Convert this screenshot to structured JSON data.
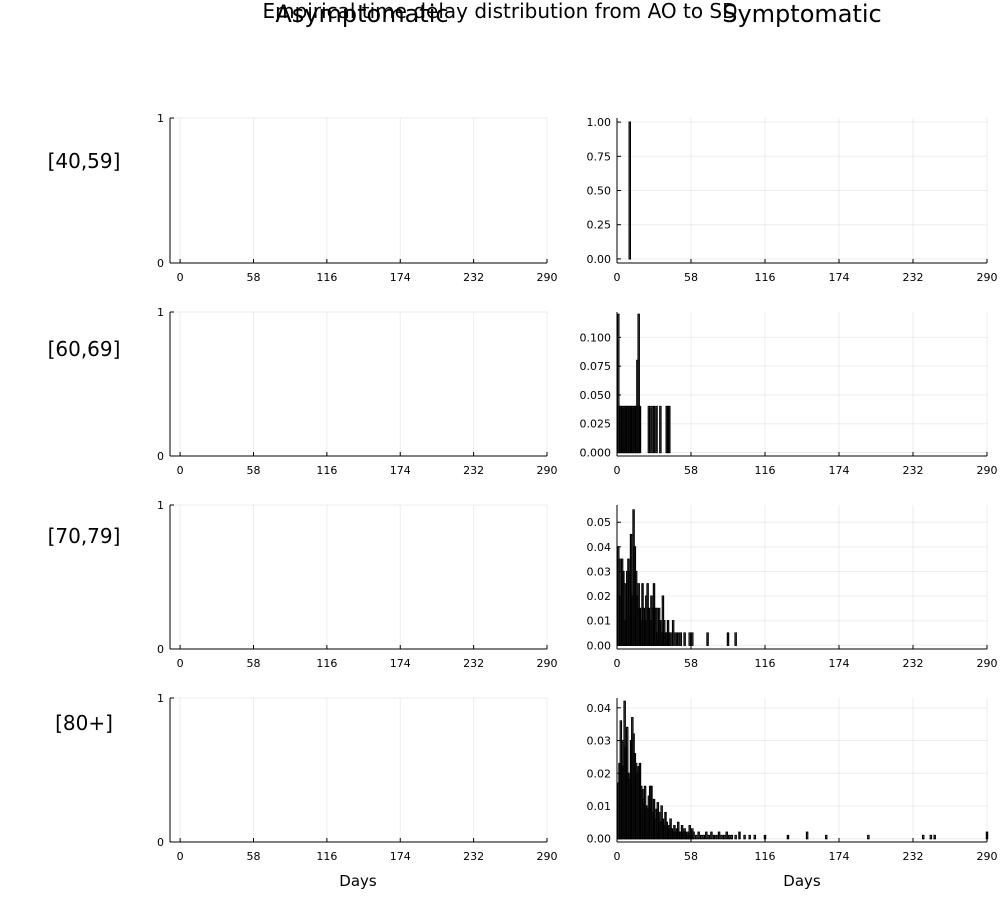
{
  "title": "Empirical time delay distribution from AO to SD",
  "columns": [
    "Asymptomatic",
    "Symptomatic"
  ],
  "rows": [
    "[40,59]",
    "[60,69]",
    "[70,79]",
    "[80+]"
  ],
  "xlabel": "Days",
  "colors": {
    "bar": "#000000",
    "axis": "#000000"
  },
  "chart_data": [
    {
      "type": "bar",
      "panel": "Asymptomatic [40,59]",
      "xlim": [
        -8,
        290
      ],
      "ylim": [
        0,
        1
      ],
      "xticks": [
        0,
        58,
        116,
        174,
        232,
        290
      ],
      "yticks": [
        0,
        1
      ],
      "ytick_labels": [
        "0",
        "1"
      ],
      "grid": true,
      "x": [],
      "values": []
    },
    {
      "type": "bar",
      "panel": "Symptomatic [40,59]",
      "xlim": [
        0,
        290
      ],
      "ylim": [
        -0.03,
        1.03
      ],
      "xticks": [
        0,
        58,
        116,
        174,
        232,
        290
      ],
      "yticks": [
        0,
        0.25,
        0.5,
        0.75,
        1.0
      ],
      "ytick_labels": [
        "0.00",
        "0.25",
        "0.50",
        "0.75",
        "1.00"
      ],
      "grid": true,
      "x": [
        10
      ],
      "values": [
        1.0
      ]
    },
    {
      "type": "bar",
      "panel": "Asymptomatic [60,69]",
      "xlim": [
        -8,
        290
      ],
      "ylim": [
        0,
        1
      ],
      "xticks": [
        0,
        58,
        116,
        174,
        232,
        290
      ],
      "yticks": [
        0,
        1
      ],
      "ytick_labels": [
        "0",
        "1"
      ],
      "grid": true,
      "x": [],
      "values": []
    },
    {
      "type": "bar",
      "panel": "Symptomatic [60,69]",
      "xlim": [
        0,
        290
      ],
      "ylim": [
        -0.003,
        0.122
      ],
      "xticks": [
        0,
        58,
        116,
        174,
        232,
        290
      ],
      "yticks": [
        0,
        0.025,
        0.05,
        0.075,
        0.1
      ],
      "ytick_labels": [
        "0.000",
        "0.025",
        "0.050",
        "0.075",
        "0.100"
      ],
      "grid": true,
      "x": [
        1,
        2,
        3,
        4,
        5,
        6,
        7,
        8,
        9,
        10,
        11,
        12,
        13,
        14,
        15,
        16,
        17,
        18,
        25,
        27,
        29,
        31,
        34,
        39,
        40,
        41
      ],
      "values": [
        0.12,
        0.04,
        0.04,
        0.04,
        0.04,
        0.04,
        0.04,
        0.04,
        0.04,
        0.04,
        0.04,
        0.04,
        0.04,
        0.04,
        0.04,
        0.08,
        0.12,
        0.04,
        0.04,
        0.04,
        0.04,
        0.04,
        0.04,
        0.04,
        0.04,
        0.04
      ]
    },
    {
      "type": "bar",
      "panel": "Asymptomatic [70,79]",
      "xlim": [
        -8,
        290
      ],
      "ylim": [
        0,
        1
      ],
      "xticks": [
        0,
        58,
        116,
        174,
        232,
        290
      ],
      "yticks": [
        0,
        1
      ],
      "ytick_labels": [
        "0",
        "1"
      ],
      "grid": true,
      "x": [],
      "values": []
    },
    {
      "type": "bar",
      "panel": "Symptomatic [70,79]",
      "xlim": [
        0,
        290
      ],
      "ylim": [
        -0.0015,
        0.057
      ],
      "xticks": [
        0,
        58,
        116,
        174,
        232,
        290
      ],
      "yticks": [
        0,
        0.01,
        0.02,
        0.03,
        0.04,
        0.05
      ],
      "ytick_labels": [
        "0.00",
        "0.01",
        "0.02",
        "0.03",
        "0.04",
        "0.05"
      ],
      "grid": true,
      "x": [
        1,
        2,
        3,
        4,
        5,
        6,
        7,
        8,
        9,
        10,
        11,
        12,
        13,
        14,
        15,
        16,
        17,
        18,
        19,
        20,
        21,
        22,
        23,
        24,
        25,
        26,
        27,
        28,
        29,
        30,
        31,
        32,
        33,
        34,
        35,
        36,
        37,
        38,
        39,
        40,
        41,
        42,
        44,
        46,
        48,
        50,
        53,
        57,
        59,
        71,
        87,
        93
      ],
      "values": [
        0.04,
        0.035,
        0.02,
        0.035,
        0.03,
        0.025,
        0.01,
        0.03,
        0.035,
        0.03,
        0.045,
        0.02,
        0.055,
        0.04,
        0.03,
        0.02,
        0.025,
        0.015,
        0.01,
        0.025,
        0.015,
        0.01,
        0.02,
        0.025,
        0.015,
        0.01,
        0.02,
        0.015,
        0.025,
        0.015,
        0.015,
        0.005,
        0.015,
        0.01,
        0.005,
        0.02,
        0.01,
        0.005,
        0.005,
        0.01,
        0.005,
        0.005,
        0.01,
        0.005,
        0.005,
        0.005,
        0.005,
        0.005,
        0.005,
        0.005,
        0.005,
        0.005
      ]
    },
    {
      "type": "bar",
      "panel": "Asymptomatic [80+]",
      "xlim": [
        -8,
        290
      ],
      "ylim": [
        0,
        1
      ],
      "xticks": [
        0,
        58,
        116,
        174,
        232,
        290
      ],
      "yticks": [
        0,
        1
      ],
      "ytick_labels": [
        "0",
        "1"
      ],
      "grid": true,
      "x": [],
      "values": []
    },
    {
      "type": "bar",
      "panel": "Symptomatic [80+]",
      "xlim": [
        0,
        290
      ],
      "ylim": [
        -0.001,
        0.043
      ],
      "xticks": [
        0,
        58,
        116,
        174,
        232,
        290
      ],
      "yticks": [
        0,
        0.01,
        0.02,
        0.03,
        0.04
      ],
      "ytick_labels": [
        "0.00",
        "0.01",
        "0.02",
        "0.03",
        "0.04"
      ],
      "grid": true,
      "x": [
        1,
        2,
        3,
        4,
        5,
        6,
        7,
        8,
        9,
        10,
        11,
        12,
        13,
        14,
        15,
        16,
        17,
        18,
        19,
        20,
        21,
        22,
        23,
        24,
        25,
        26,
        27,
        28,
        29,
        30,
        31,
        32,
        33,
        34,
        35,
        36,
        37,
        38,
        39,
        40,
        41,
        42,
        43,
        44,
        45,
        46,
        47,
        48,
        49,
        50,
        51,
        52,
        53,
        54,
        55,
        56,
        57,
        58,
        59,
        60,
        62,
        64,
        66,
        68,
        70,
        72,
        74,
        76,
        78,
        80,
        82,
        84,
        86,
        88,
        90,
        93,
        96,
        100,
        104,
        108,
        116,
        134,
        149,
        164,
        197,
        240,
        246,
        249,
        290
      ],
      "values": [
        0.017,
        0.023,
        0.036,
        0.022,
        0.03,
        0.042,
        0.028,
        0.034,
        0.02,
        0.018,
        0.03,
        0.037,
        0.032,
        0.026,
        0.023,
        0.02,
        0.022,
        0.023,
        0.016,
        0.015,
        0.012,
        0.016,
        0.01,
        0.009,
        0.013,
        0.016,
        0.016,
        0.008,
        0.012,
        0.006,
        0.009,
        0.011,
        0.008,
        0.005,
        0.01,
        0.006,
        0.004,
        0.008,
        0.005,
        0.003,
        0.004,
        0.006,
        0.003,
        0.002,
        0.004,
        0.002,
        0.003,
        0.005,
        0.002,
        0.002,
        0.004,
        0.002,
        0.003,
        0.002,
        0.001,
        0.002,
        0.004,
        0.001,
        0.003,
        0.002,
        0.001,
        0.002,
        0.001,
        0.001,
        0.002,
        0.001,
        0.002,
        0.001,
        0.001,
        0.002,
        0.001,
        0.001,
        0.002,
        0.001,
        0.001,
        0.001,
        0.002,
        0.001,
        0.001,
        0.001,
        0.001,
        0.001,
        0.002,
        0.001,
        0.001,
        0.001,
        0.001,
        0.001,
        0.002
      ]
    }
  ]
}
